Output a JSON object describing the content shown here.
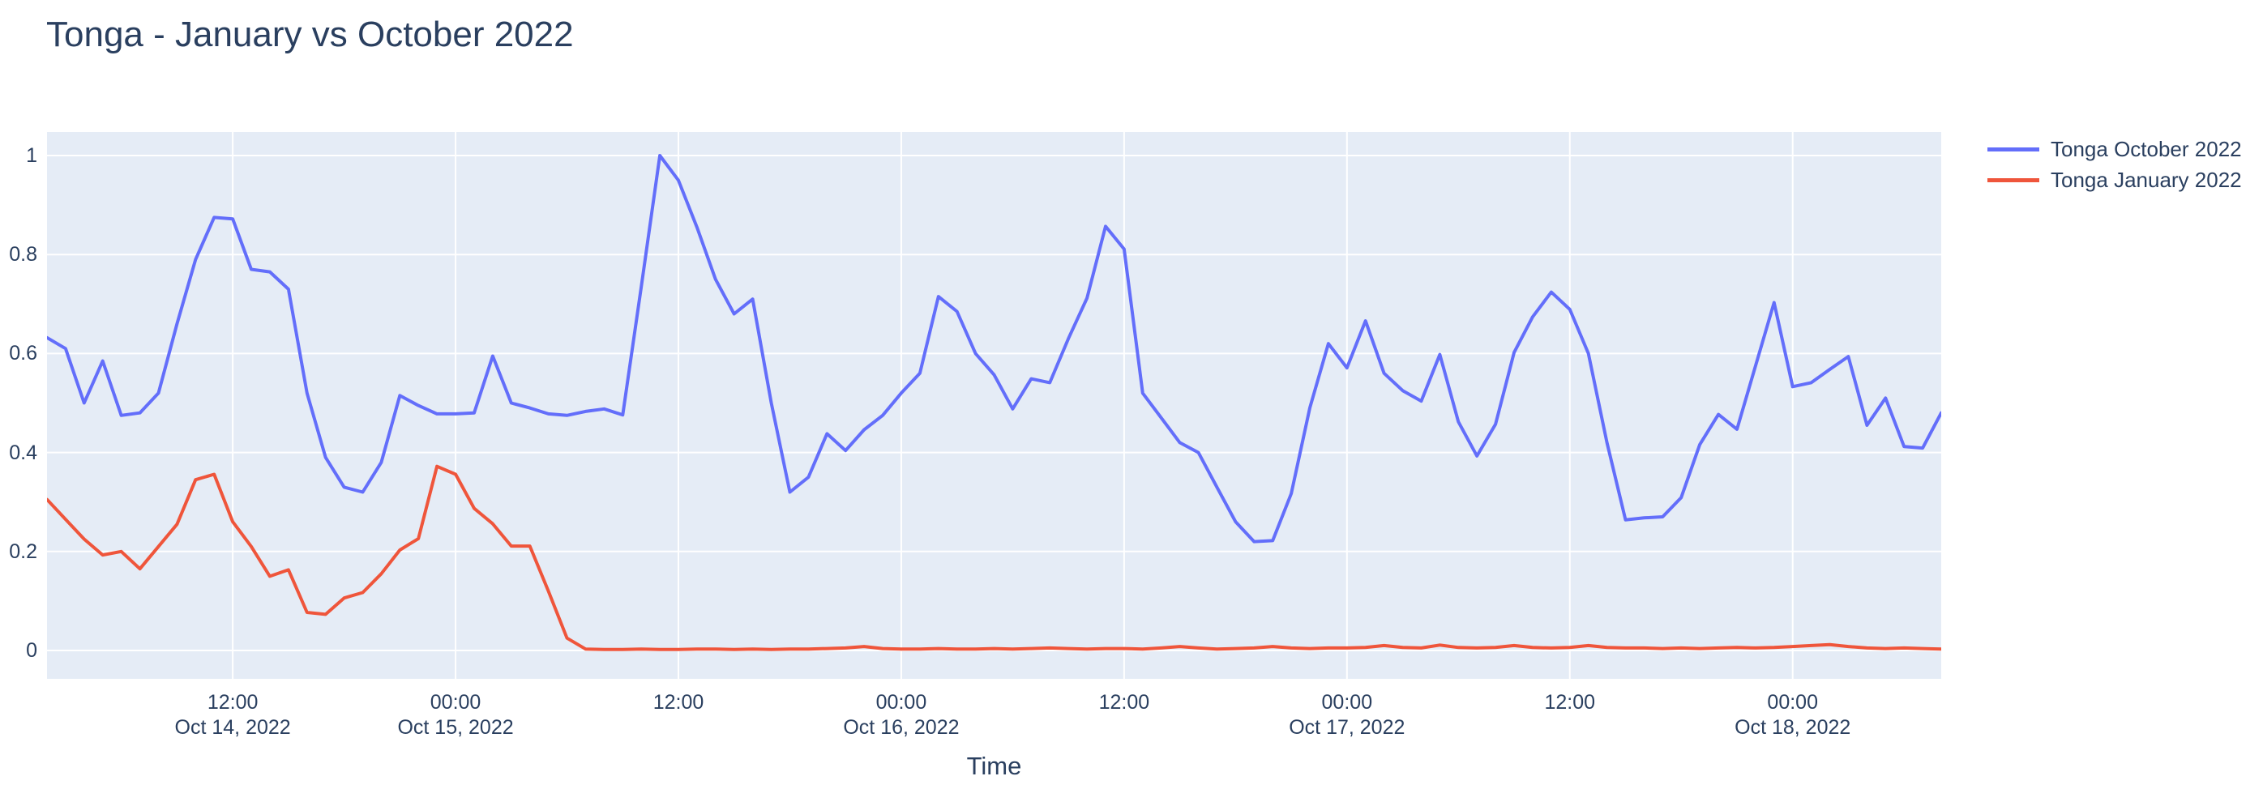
{
  "title": "Tonga - January vs October 2022",
  "colors": {
    "background": "#ffffff",
    "plot_background": "#E5ECF6",
    "grid": "#ffffff",
    "text": "#2a3f5f",
    "title_text": "#2a3f5f"
  },
  "chart_data": {
    "type": "line",
    "title": "Tonga - January vs October 2022",
    "xlabel": "Time",
    "ylabel": "",
    "ylim": [
      -0.057,
      1.047
    ],
    "yticks": [
      {
        "value": 0,
        "label": "0"
      },
      {
        "value": 0.2,
        "label": "0.2"
      },
      {
        "value": 0.4,
        "label": "0.4"
      },
      {
        "value": 0.6,
        "label": "0.6"
      },
      {
        "value": 0.8,
        "label": "0.8"
      },
      {
        "value": 1,
        "label": "1"
      }
    ],
    "x_unit": "hours",
    "x_points_are_hourly": true,
    "xticks": [
      {
        "h": 10,
        "time": "12:00",
        "date": "Oct 14, 2022"
      },
      {
        "h": 22,
        "time": "00:00",
        "date": "Oct 15, 2022"
      },
      {
        "h": 34,
        "time": "12:00",
        "date": ""
      },
      {
        "h": 46,
        "time": "00:00",
        "date": "Oct 16, 2022"
      },
      {
        "h": 58,
        "time": "12:00",
        "date": ""
      },
      {
        "h": 70,
        "time": "00:00",
        "date": "Oct 17, 2022"
      },
      {
        "h": 82,
        "time": "12:00",
        "date": ""
      },
      {
        "h": 94,
        "time": "00:00",
        "date": "Oct 18, 2022"
      }
    ],
    "grid": true,
    "legend_position": "right",
    "series": [
      {
        "name": "Tonga October 2022",
        "color": "#636EFA",
        "values": [
          0.632,
          0.61,
          0.5,
          0.585,
          0.475,
          0.48,
          0.52,
          0.66,
          0.79,
          0.875,
          0.872,
          0.77,
          0.765,
          0.73,
          0.52,
          0.39,
          0.33,
          0.32,
          0.38,
          0.515,
          0.495,
          0.478,
          0.478,
          0.48,
          0.595,
          0.5,
          0.49,
          0.478,
          0.475,
          0.483,
          0.488,
          0.476,
          0.735,
          1.0,
          0.95,
          0.855,
          0.75,
          0.68,
          0.71,
          0.5,
          0.32,
          0.35,
          0.438,
          0.404,
          0.446,
          0.475,
          0.52,
          0.56,
          0.715,
          0.685,
          0.6,
          0.557,
          0.488,
          0.549,
          0.541,
          0.63,
          0.712,
          0.857,
          0.811,
          0.52,
          0.47,
          0.42,
          0.4,
          0.33,
          0.26,
          0.22,
          0.222,
          0.317,
          0.49,
          0.62,
          0.571,
          0.666,
          0.56,
          0.525,
          0.504,
          0.598,
          0.462,
          0.393,
          0.457,
          0.602,
          0.674,
          0.724,
          0.689,
          0.6,
          0.42,
          0.264,
          0.268,
          0.27,
          0.309,
          0.416,
          0.477,
          0.447,
          0.575,
          0.703,
          0.533,
          0.541,
          0.568,
          0.594,
          0.455,
          0.51,
          0.412,
          0.409,
          0.48
        ]
      },
      {
        "name": "Tonga January 2022",
        "color": "#EF553B",
        "values": [
          0.305,
          0.265,
          0.225,
          0.193,
          0.2,
          0.165,
          0.21,
          0.255,
          0.345,
          0.356,
          0.26,
          0.21,
          0.15,
          0.163,
          0.077,
          0.073,
          0.106,
          0.117,
          0.155,
          0.203,
          0.226,
          0.372,
          0.356,
          0.287,
          0.256,
          0.211,
          0.211,
          0.12,
          0.025,
          0.003,
          0.002,
          0.002,
          0.003,
          0.002,
          0.002,
          0.003,
          0.003,
          0.002,
          0.003,
          0.002,
          0.003,
          0.003,
          0.004,
          0.005,
          0.008,
          0.004,
          0.003,
          0.003,
          0.004,
          0.003,
          0.003,
          0.004,
          0.003,
          0.004,
          0.005,
          0.004,
          0.003,
          0.004,
          0.004,
          0.003,
          0.005,
          0.008,
          0.005,
          0.003,
          0.004,
          0.005,
          0.008,
          0.005,
          0.004,
          0.005,
          0.005,
          0.006,
          0.01,
          0.006,
          0.005,
          0.011,
          0.006,
          0.005,
          0.006,
          0.01,
          0.006,
          0.005,
          0.006,
          0.01,
          0.006,
          0.005,
          0.005,
          0.004,
          0.005,
          0.004,
          0.005,
          0.006,
          0.005,
          0.006,
          0.008,
          0.01,
          0.012,
          0.008,
          0.005,
          0.004,
          0.005,
          0.004,
          0.003
        ]
      }
    ]
  }
}
